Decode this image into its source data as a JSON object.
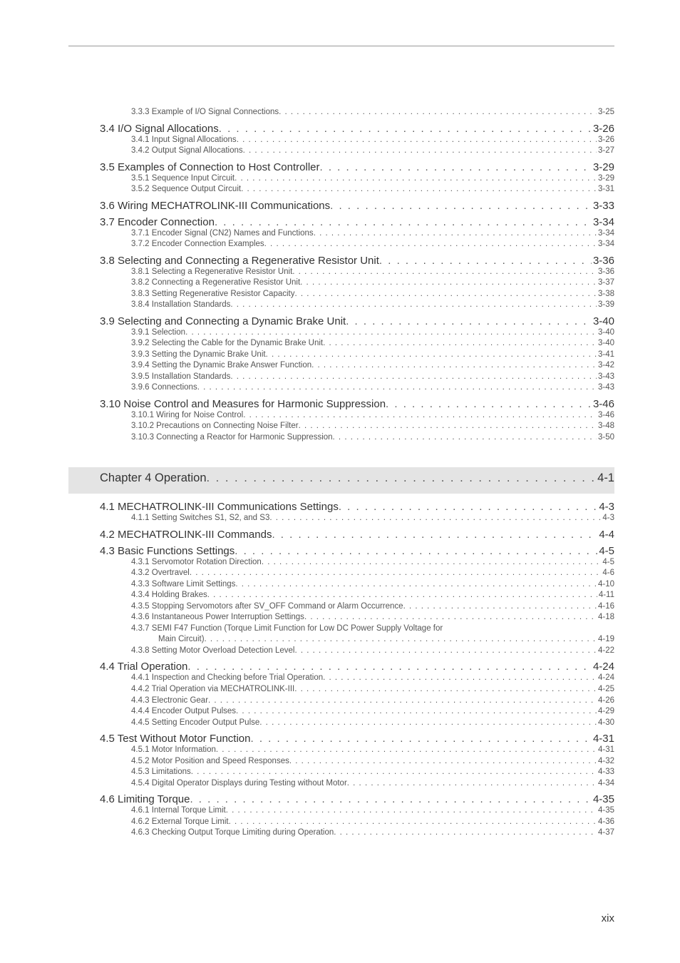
{
  "colors": {
    "text_main": "#333333",
    "text_sub": "#555555",
    "chapter_bg": "#e4e4e4",
    "rule": "#999999",
    "background": "#ffffff"
  },
  "typography": {
    "chapter_fontsize_pt": 12.5,
    "section_fontsize_pt": 11,
    "sub_fontsize_pt": 8.5,
    "font_family": "Arial, Helvetica, sans-serif"
  },
  "page_number": "xix",
  "toc": [
    {
      "level": "sub",
      "label": "3.3.3  Example of I/O Signal Connections",
      "page": "3-25"
    },
    {
      "level": "section",
      "label": "3.4  I/O Signal Allocations",
      "page": "3-26",
      "gap": true
    },
    {
      "level": "sub",
      "label": "3.4.1  Input Signal Allocations",
      "page": "3-26"
    },
    {
      "level": "sub",
      "label": "3.4.2  Output Signal Allocations",
      "page": "3-27"
    },
    {
      "level": "section",
      "label": "3.5  Examples of Connection to Host Controller",
      "page": "3-29",
      "gap": true
    },
    {
      "level": "sub",
      "label": "3.5.1  Sequence Input Circuit",
      "page": "3-29"
    },
    {
      "level": "sub",
      "label": "3.5.2  Sequence Output Circuit",
      "page": "3-31"
    },
    {
      "level": "section",
      "label": "3.6  Wiring MECHATROLINK-III Communications",
      "page": "3-33",
      "gap": true
    },
    {
      "level": "section",
      "label": "3.7  Encoder Connection",
      "page": "3-34",
      "gap": true
    },
    {
      "level": "sub",
      "label": "3.7.1  Encoder Signal (CN2) Names and Functions",
      "page": "3-34"
    },
    {
      "level": "sub",
      "label": "3.7.2  Encoder Connection Examples",
      "page": "3-34"
    },
    {
      "level": "section",
      "label": "3.8  Selecting and Connecting a Regenerative Resistor Unit",
      "page": "3-36",
      "gap": true
    },
    {
      "level": "sub",
      "label": "3.8.1  Selecting a Regenerative Resistor Unit",
      "page": "3-36"
    },
    {
      "level": "sub",
      "label": "3.8.2  Connecting a Regenerative Resistor Unit",
      "page": "3-37"
    },
    {
      "level": "sub",
      "label": "3.8.3  Setting Regenerative Resistor Capacity",
      "page": "3-38"
    },
    {
      "level": "sub",
      "label": "3.8.4  Installation Standards",
      "page": "3-39"
    },
    {
      "level": "section",
      "label": "3.9  Selecting and Connecting a Dynamic Brake Unit",
      "page": "3-40",
      "gap": true
    },
    {
      "level": "sub",
      "label": "3.9.1  Selection",
      "page": "3-40"
    },
    {
      "level": "sub",
      "label": "3.9.2  Selecting the Cable for the Dynamic Brake Unit",
      "page": "3-40"
    },
    {
      "level": "sub",
      "label": "3.9.3  Setting the Dynamic Brake Unit",
      "page": "3-41"
    },
    {
      "level": "sub",
      "label": "3.9.4  Setting the Dynamic Brake Answer Function",
      "page": "3-42"
    },
    {
      "level": "sub",
      "label": "3.9.5  Installation Standards",
      "page": "3-43"
    },
    {
      "level": "sub",
      "label": "3.9.6  Connections",
      "page": "3-43"
    },
    {
      "level": "section",
      "label": "3.10  Noise Control and Measures for Harmonic Suppression",
      "page": "3-46",
      "gap": true
    },
    {
      "level": "sub",
      "label": "3.10.1  Wiring for Noise Control",
      "page": "3-46"
    },
    {
      "level": "sub",
      "label": "3.10.2  Precautions on Connecting Noise Filter",
      "page": "3-48"
    },
    {
      "level": "sub",
      "label": "3.10.3  Connecting a Reactor for Harmonic Suppression",
      "page": "3-50"
    },
    {
      "level": "chapter",
      "label": "Chapter 4  Operation",
      "page": "4-1"
    },
    {
      "level": "section",
      "label": "4.1  MECHATROLINK-III Communications Settings",
      "page": "4-3",
      "gap": true
    },
    {
      "level": "sub",
      "label": "4.1.1  Setting Switches S1, S2, and S3",
      "page": "4-3"
    },
    {
      "level": "section",
      "label": "4.2  MECHATROLINK-III Commands",
      "page": "4-4",
      "gap": true
    },
    {
      "level": "section",
      "label": "4.3  Basic Functions Settings",
      "page": "4-5",
      "gap": true
    },
    {
      "level": "sub",
      "label": "4.3.1  Servomotor Rotation Direction",
      "page": "4-5"
    },
    {
      "level": "sub",
      "label": "4.3.2  Overtravel",
      "page": "4-6"
    },
    {
      "level": "sub",
      "label": "4.3.3  Software Limit Settings",
      "page": "4-10"
    },
    {
      "level": "sub",
      "label": "4.3.4  Holding Brakes",
      "page": "4-11"
    },
    {
      "level": "sub",
      "label": "4.3.5  Stopping Servomotors after SV_OFF Command or Alarm Occurrence",
      "page": "4-16"
    },
    {
      "level": "sub",
      "label": "4.3.6  Instantaneous Power Interruption Settings",
      "page": "4-18"
    },
    {
      "level": "sub",
      "label": "4.3.7  SEMI F47 Function (Torque Limit Function for Low DC Power Supply Voltage for",
      "page": "",
      "wrap": true
    },
    {
      "level": "subcont",
      "label": "Main Circuit)",
      "page": "4-19"
    },
    {
      "level": "sub",
      "label": "4.3.8  Setting Motor Overload Detection Level",
      "page": "4-22"
    },
    {
      "level": "section",
      "label": "4.4  Trial Operation",
      "page": "4-24",
      "gap": true
    },
    {
      "level": "sub",
      "label": "4.4.1  Inspection and Checking before Trial Operation",
      "page": "4-24"
    },
    {
      "level": "sub",
      "label": "4.4.2  Trial Operation via MECHATROLINK-III",
      "page": "4-25"
    },
    {
      "level": "sub",
      "label": "4.4.3  Electronic Gear",
      "page": "4-26"
    },
    {
      "level": "sub",
      "label": "4.4.4  Encoder Output Pulses",
      "page": "4-29"
    },
    {
      "level": "sub",
      "label": "4.4.5  Setting Encoder Output Pulse",
      "page": "4-30"
    },
    {
      "level": "section",
      "label": "4.5  Test Without Motor Function",
      "page": "4-31",
      "gap": true
    },
    {
      "level": "sub",
      "label": "4.5.1  Motor Information",
      "page": "4-31"
    },
    {
      "level": "sub",
      "label": "4.5.2  Motor Position and Speed Responses",
      "page": "4-32"
    },
    {
      "level": "sub",
      "label": "4.5.3  Limitations",
      "page": "4-33"
    },
    {
      "level": "sub",
      "label": "4.5.4  Digital Operator Displays during Testing without Motor",
      "page": "4-34"
    },
    {
      "level": "section",
      "label": "4.6  Limiting Torque",
      "page": "4-35",
      "gap": true
    },
    {
      "level": "sub",
      "label": "4.6.1  Internal Torque Limit",
      "page": "4-35"
    },
    {
      "level": "sub",
      "label": "4.6.2  External Torque Limit",
      "page": "4-36"
    },
    {
      "level": "sub",
      "label": "4.6.3  Checking Output Torque Limiting during Operation",
      "page": "4-37"
    }
  ]
}
